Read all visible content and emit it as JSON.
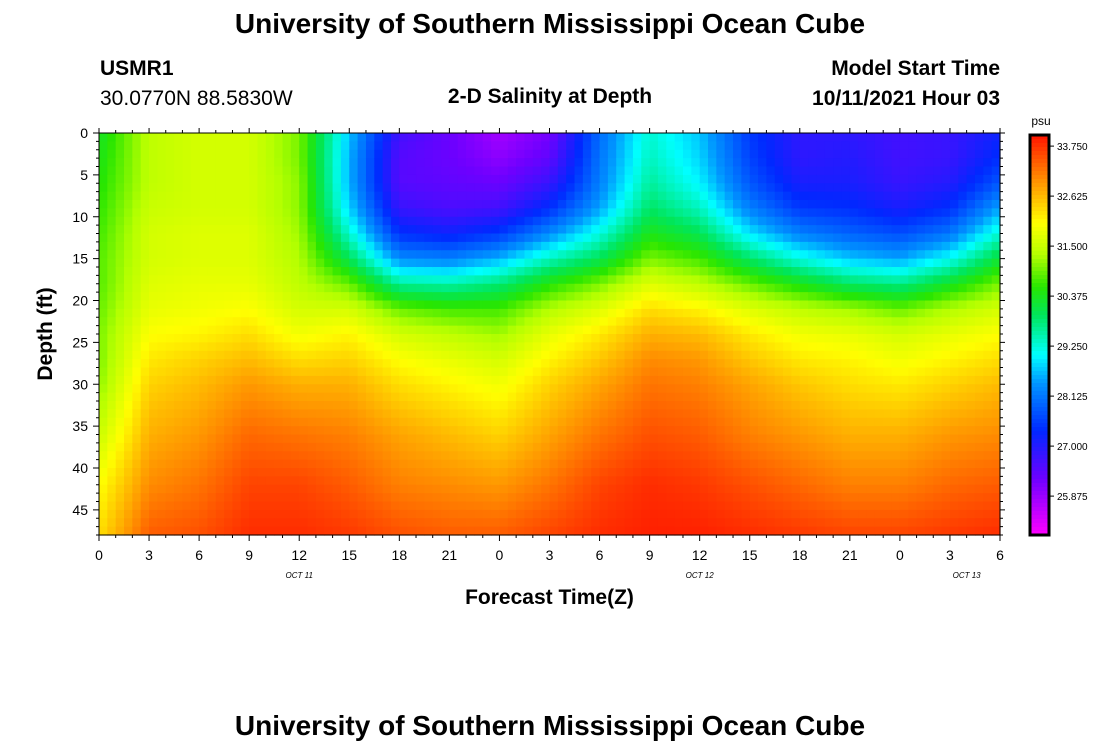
{
  "header": {
    "title": "University of Southern Mississippi Ocean Cube",
    "station_id": "USMR1",
    "coordinates": "30.0770N  88.5830W",
    "subtitle": "2-D Salinity at Depth",
    "model_label": "Model Start Time",
    "model_time": "10/11/2021 Hour 03"
  },
  "footer": {
    "title": "University of Southern Mississippi Ocean Cube"
  },
  "chart_data": {
    "type": "heatmap",
    "title": "2-D Salinity at Depth",
    "xlabel": "Forecast Time(Z)",
    "ylabel": "Depth (ft)",
    "x_range_hours": [
      0,
      54
    ],
    "ylim": [
      0,
      48
    ],
    "y_inverted": true,
    "x_ticks": [
      "0",
      "3",
      "6",
      "9",
      "12",
      "15",
      "18",
      "21",
      "0",
      "3",
      "6",
      "9",
      "12",
      "15",
      "18",
      "21",
      "0",
      "3",
      "6"
    ],
    "x_tick_hours": [
      0,
      3,
      6,
      9,
      12,
      15,
      18,
      21,
      24,
      27,
      30,
      33,
      36,
      39,
      42,
      45,
      48,
      51,
      54
    ],
    "date_labels": [
      {
        "text": "OCT 11",
        "hour": 12
      },
      {
        "text": "OCT 12",
        "hour": 36
      },
      {
        "text": "OCT 13",
        "hour": 52
      }
    ],
    "y_ticks": [
      "0",
      "5",
      "10",
      "15",
      "20",
      "25",
      "30",
      "35",
      "40",
      "45"
    ],
    "y_tick_values": [
      0,
      5,
      10,
      15,
      20,
      25,
      30,
      35,
      40,
      45
    ],
    "colorbar": {
      "unit": "psu",
      "min": 25.0,
      "max": 34.0,
      "tick_labels": [
        "33.750",
        "32.625",
        "31.500",
        "30.375",
        "29.250",
        "28.125",
        "27.000",
        "25.875"
      ],
      "tick_values": [
        33.75,
        32.625,
        31.5,
        30.375,
        29.25,
        28.125,
        27.0,
        25.875
      ]
    },
    "grid_hours": [
      0,
      3,
      6,
      9,
      12,
      15,
      18,
      21,
      24,
      27,
      30,
      33,
      36,
      39,
      42,
      45,
      48,
      51,
      54
    ],
    "grid_depths": [
      0,
      3,
      6,
      9,
      12,
      15,
      18,
      21,
      24,
      27,
      30,
      36,
      42,
      48
    ],
    "salinity": [
      [
        30.3,
        30.4,
        30.5,
        30.6,
        30.7,
        30.8,
        30.8,
        30.9,
        31.0,
        31.0,
        31.1,
        31.5,
        32.0,
        32.3
      ],
      [
        31.4,
        31.4,
        31.4,
        31.5,
        31.6,
        31.6,
        31.7,
        31.8,
        32.0,
        32.2,
        32.4,
        32.7,
        33.0,
        33.4
      ],
      [
        31.6,
        31.6,
        31.6,
        31.6,
        31.7,
        31.7,
        31.8,
        31.9,
        32.1,
        32.4,
        32.6,
        32.9,
        33.2,
        33.5
      ],
      [
        31.6,
        31.6,
        31.6,
        31.6,
        31.7,
        31.7,
        31.8,
        32.0,
        32.3,
        32.6,
        32.9,
        33.3,
        33.6,
        33.8
      ],
      [
        31.0,
        31.0,
        31.1,
        31.1,
        31.2,
        31.3,
        31.4,
        31.6,
        31.9,
        32.3,
        32.7,
        33.2,
        33.6,
        33.8
      ],
      [
        28.7,
        28.6,
        28.6,
        28.8,
        29.3,
        30.0,
        30.9,
        31.6,
        32.1,
        32.4,
        32.7,
        33.1,
        33.4,
        33.7
      ],
      [
        26.7,
        26.5,
        26.5,
        26.8,
        27.4,
        28.3,
        29.6,
        30.9,
        31.6,
        32.0,
        32.3,
        32.8,
        33.1,
        33.5
      ],
      [
        26.3,
        26.3,
        26.4,
        26.6,
        27.2,
        28.2,
        29.5,
        30.7,
        31.4,
        31.8,
        32.1,
        32.6,
        33.0,
        33.4
      ],
      [
        25.8,
        26.0,
        26.3,
        26.7,
        27.5,
        28.6,
        29.8,
        30.7,
        31.2,
        31.6,
        31.9,
        32.4,
        32.9,
        33.4
      ],
      [
        26.2,
        26.4,
        26.8,
        27.4,
        28.3,
        29.4,
        30.5,
        31.3,
        31.8,
        32.1,
        32.4,
        32.8,
        33.2,
        33.6
      ],
      [
        28.0,
        28.1,
        28.2,
        28.5,
        29.2,
        30.0,
        31.0,
        31.7,
        32.2,
        32.5,
        32.8,
        33.2,
        33.6,
        33.8
      ],
      [
        29.3,
        29.4,
        29.6,
        29.9,
        30.4,
        31.0,
        31.7,
        32.3,
        32.7,
        33.0,
        33.2,
        33.5,
        33.8,
        33.9
      ],
      [
        28.7,
        28.8,
        29.0,
        29.4,
        30.0,
        30.7,
        31.4,
        32.1,
        32.6,
        32.9,
        33.1,
        33.4,
        33.7,
        33.9
      ],
      [
        27.5,
        27.6,
        27.8,
        28.2,
        28.9,
        29.9,
        30.9,
        31.7,
        32.2,
        32.5,
        32.8,
        33.1,
        33.5,
        33.8
      ],
      [
        26.9,
        26.9,
        27.1,
        27.5,
        28.2,
        29.2,
        30.4,
        31.4,
        31.9,
        32.2,
        32.5,
        32.9,
        33.3,
        33.7
      ],
      [
        26.9,
        27.0,
        27.1,
        27.4,
        27.9,
        28.7,
        29.9,
        31.2,
        31.8,
        32.1,
        32.3,
        32.7,
        33.1,
        33.6
      ],
      [
        26.7,
        26.7,
        26.8,
        27.1,
        27.7,
        28.5,
        29.7,
        30.9,
        31.6,
        31.9,
        32.2,
        32.7,
        33.1,
        33.6
      ],
      [
        26.8,
        26.8,
        27.0,
        27.4,
        28.1,
        29.1,
        30.3,
        31.3,
        31.8,
        32.1,
        32.4,
        32.9,
        33.3,
        33.7
      ],
      [
        27.2,
        27.4,
        27.8,
        28.5,
        29.3,
        30.2,
        31.0,
        31.6,
        32.0,
        32.3,
        32.6,
        33.0,
        33.4,
        33.8
      ]
    ]
  }
}
